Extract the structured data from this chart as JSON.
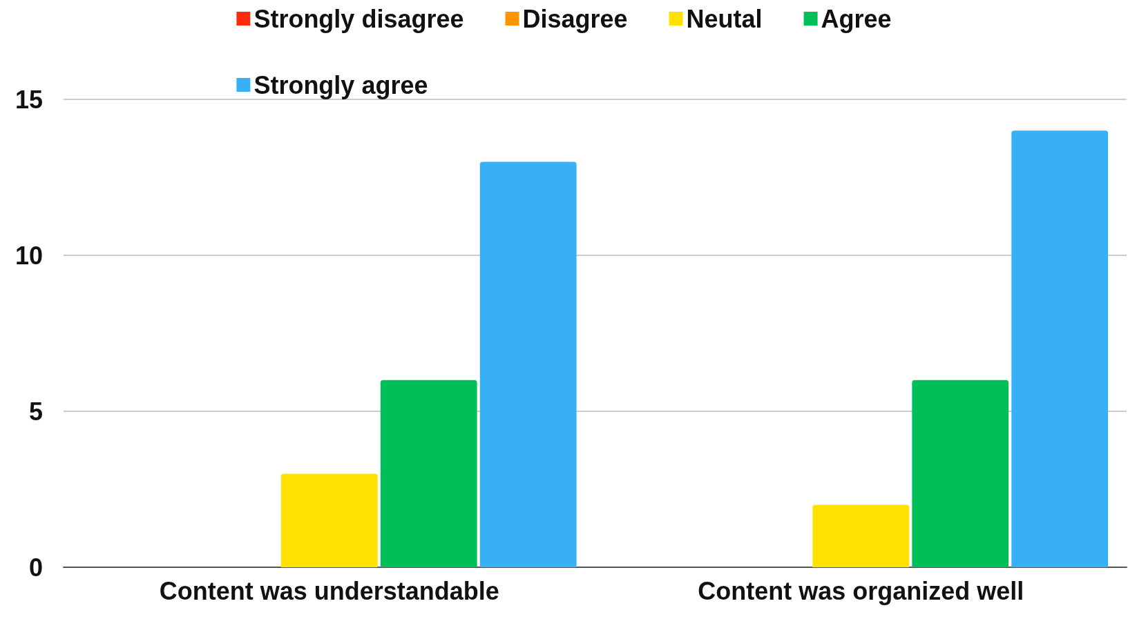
{
  "chart_data": {
    "type": "bar",
    "categories": [
      "Content was understandable",
      "Content was organized well"
    ],
    "series": [
      {
        "name": "Strongly disagree",
        "color": "#ff2a0d",
        "values": [
          0,
          0
        ]
      },
      {
        "name": "Disagree",
        "color": "#ff9500",
        "values": [
          0,
          0
        ]
      },
      {
        "name": "Neutal",
        "color": "#ffe200",
        "values": [
          3,
          2
        ]
      },
      {
        "name": "Agree",
        "color": "#00bf58",
        "values": [
          6,
          6
        ]
      },
      {
        "name": "Strongly agree",
        "color": "#38b0f7",
        "values": [
          13,
          14
        ]
      }
    ],
    "ylim": [
      0,
      15
    ],
    "yticks": [
      0,
      5,
      10,
      15
    ],
    "grid": "y",
    "legend": "top"
  }
}
